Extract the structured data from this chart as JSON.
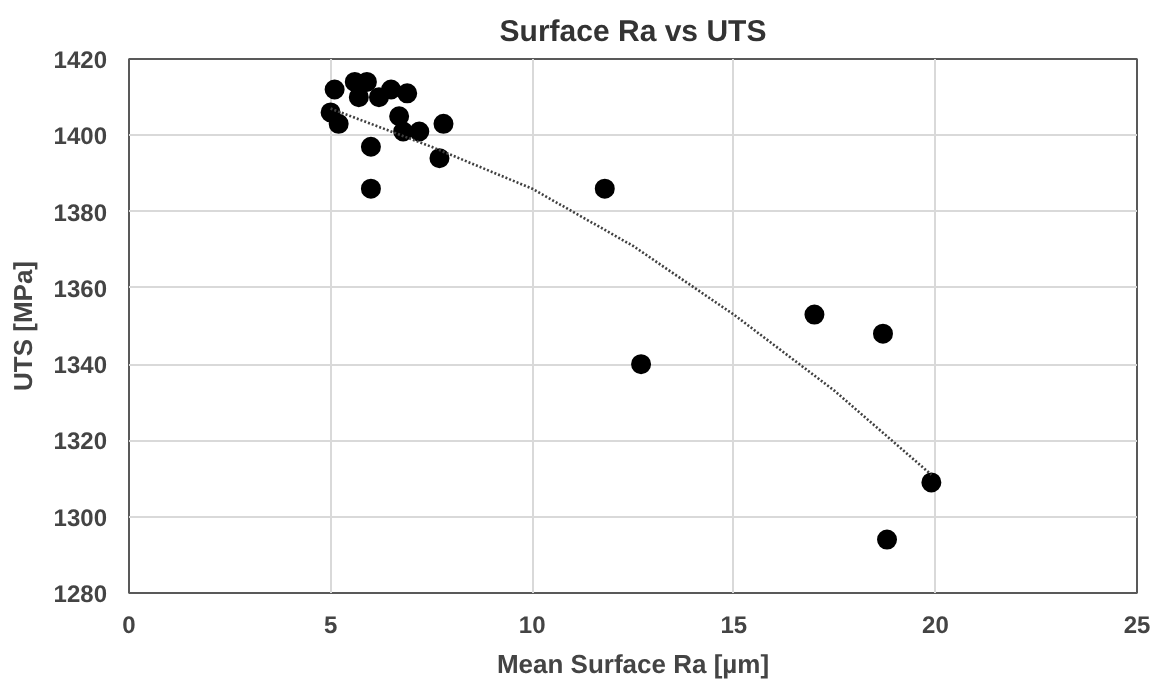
{
  "chart_data": {
    "type": "scatter",
    "title": "Surface Ra vs UTS",
    "xlabel": "Mean Surface Ra [µm]",
    "ylabel": "UTS [MPa]",
    "xlim": [
      0,
      25
    ],
    "xticks": [
      0,
      5,
      10,
      15,
      20,
      25
    ],
    "ylim": [
      1280,
      1420
    ],
    "yticks": [
      1280,
      1300,
      1320,
      1340,
      1360,
      1380,
      1400,
      1420
    ],
    "grid": true,
    "marker": "circle",
    "series": [
      {
        "color": "#000000",
        "x": [
          5.0,
          5.1,
          5.2,
          5.6,
          5.7,
          5.9,
          6.0,
          6.0,
          6.2,
          6.5,
          6.7,
          6.9,
          6.8,
          7.2,
          7.7,
          7.8,
          11.8,
          12.7,
          17.0,
          18.7,
          19.9,
          18.8
        ],
        "values": [
          1406,
          1412,
          1403,
          1414,
          1410,
          1414,
          1397,
          1386,
          1410,
          1412,
          1405,
          1411,
          1401,
          1401,
          1394,
          1403,
          1386,
          1340,
          1353,
          1348,
          1309,
          1294
        ]
      },
      {
        "type": "line",
        "color": "#404040",
        "line_style": "dotted",
        "marker": "none",
        "x": [
          5.0,
          7.5,
          10.0,
          12.5,
          15.0,
          17.5,
          19.9
        ],
        "values": [
          1407,
          1397,
          1386,
          1371,
          1353,
          1333,
          1311
        ]
      }
    ]
  }
}
